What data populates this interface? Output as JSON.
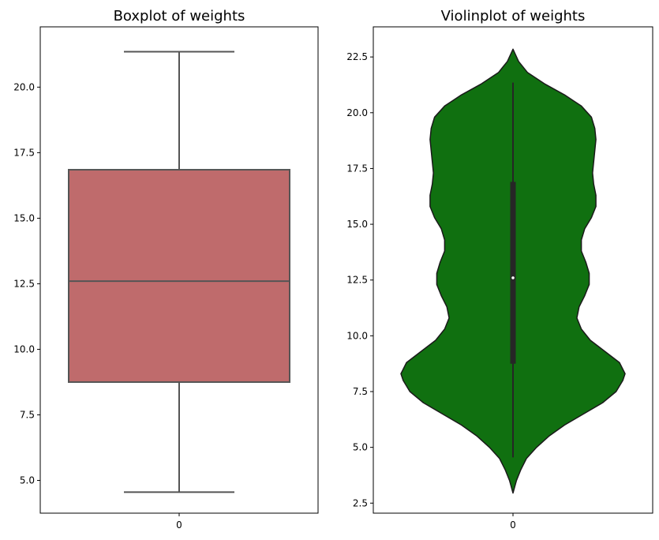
{
  "chart_data": [
    {
      "type": "box",
      "title": "Boxplot of weights",
      "xlabel": "",
      "ylabel": "",
      "categories": [
        "0"
      ],
      "ylim": [
        3.75,
        22.3
      ],
      "yticks": [
        5.0,
        7.5,
        10.0,
        12.5,
        15.0,
        17.5,
        20.0
      ],
      "ytick_labels": [
        "5.0",
        "7.5",
        "10.0",
        "12.5",
        "15.0",
        "17.5",
        "20.0"
      ],
      "stats": {
        "whisker_low": 4.55,
        "q1": 8.75,
        "median": 12.6,
        "q3": 16.85,
        "whisker_high": 21.35
      },
      "colors": {
        "box": "#bf6b6c",
        "line": "#555555"
      },
      "grid": false
    },
    {
      "type": "violin",
      "title": "Violinplot of weights",
      "xlabel": "",
      "ylabel": "",
      "categories": [
        "0"
      ],
      "ylim": [
        2.05,
        23.85
      ],
      "yticks": [
        2.5,
        5.0,
        7.5,
        10.0,
        12.5,
        15.0,
        17.5,
        20.0,
        22.5
      ],
      "ytick_labels": [
        "2.5",
        "5.0",
        "7.5",
        "10.0",
        "12.5",
        "15.0",
        "17.5",
        "20.0",
        "22.5"
      ],
      "stats": {
        "whisker_low": 4.55,
        "q1": 8.75,
        "median": 12.6,
        "q3": 16.9,
        "whisker_high": 21.35
      },
      "density_profile": [
        [
          2.95,
          0.0
        ],
        [
          3.5,
          0.03
        ],
        [
          4.0,
          0.07
        ],
        [
          4.5,
          0.12
        ],
        [
          5.0,
          0.21
        ],
        [
          5.5,
          0.32
        ],
        [
          6.0,
          0.46
        ],
        [
          6.5,
          0.63
        ],
        [
          7.0,
          0.8
        ],
        [
          7.5,
          0.92
        ],
        [
          8.0,
          0.98
        ],
        [
          8.3,
          1.0
        ],
        [
          8.8,
          0.95
        ],
        [
          9.3,
          0.82
        ],
        [
          9.8,
          0.69
        ],
        [
          10.3,
          0.61
        ],
        [
          10.8,
          0.57
        ],
        [
          11.3,
          0.59
        ],
        [
          11.8,
          0.64
        ],
        [
          12.3,
          0.68
        ],
        [
          12.8,
          0.68
        ],
        [
          13.3,
          0.65
        ],
        [
          13.8,
          0.61
        ],
        [
          14.3,
          0.61
        ],
        [
          14.8,
          0.64
        ],
        [
          15.3,
          0.7
        ],
        [
          15.8,
          0.74
        ],
        [
          16.3,
          0.74
        ],
        [
          16.8,
          0.72
        ],
        [
          17.3,
          0.71
        ],
        [
          17.8,
          0.72
        ],
        [
          18.3,
          0.73
        ],
        [
          18.8,
          0.74
        ],
        [
          19.3,
          0.73
        ],
        [
          19.8,
          0.7
        ],
        [
          20.3,
          0.61
        ],
        [
          20.8,
          0.46
        ],
        [
          21.3,
          0.28
        ],
        [
          21.8,
          0.13
        ],
        [
          22.3,
          0.05
        ],
        [
          22.85,
          0.0
        ]
      ],
      "colors": {
        "violin": "#107010",
        "edge": "#1a1a1a",
        "inner_box": "#262626",
        "median": "#ffffff"
      },
      "grid": false
    }
  ]
}
